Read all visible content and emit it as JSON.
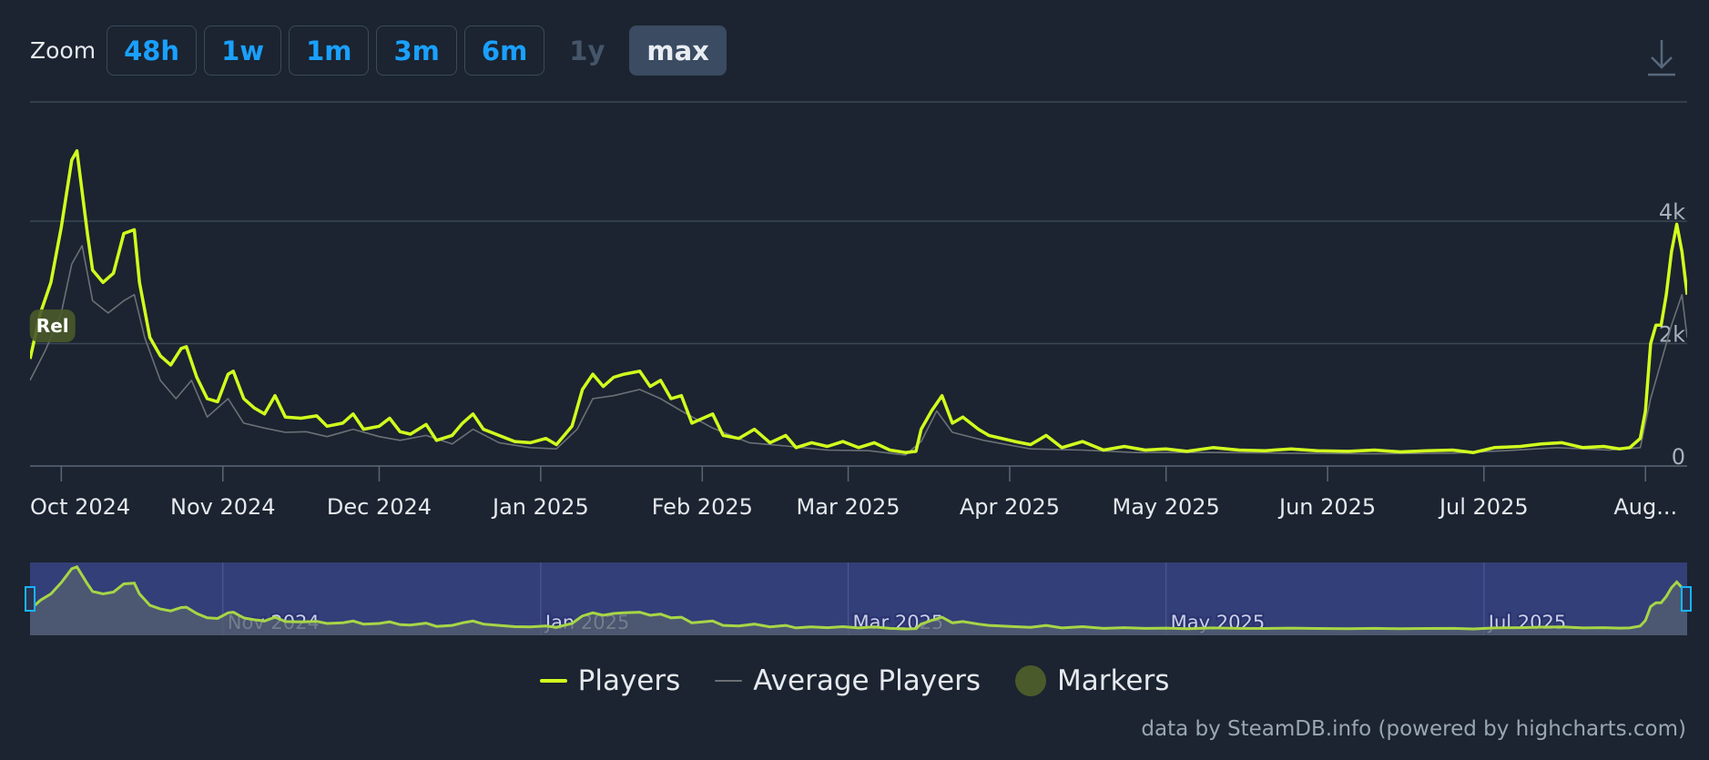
{
  "toolbar": {
    "zoom_label": "Zoom",
    "buttons": [
      "48h",
      "1w",
      "1m",
      "3m",
      "6m",
      "1y",
      "max"
    ],
    "disabled": [
      "1y"
    ],
    "active": "max",
    "download_icon": "download-icon"
  },
  "colors": {
    "background": "#1b2430",
    "players": "#d2ff1e",
    "average": "#6b7076",
    "marker": "#4a5a2a",
    "navigator_bg": "#333f78",
    "accent_button_text": "#1aa0ff"
  },
  "chart_data": {
    "type": "line",
    "x_axis": {
      "type": "datetime",
      "range": [
        "2024-09-25",
        "2025-08-09"
      ],
      "tick_labels": [
        "Oct 2024",
        "Nov 2024",
        "Dec 2024",
        "Jan 2025",
        "Feb 2025",
        "Mar 2025",
        "Apr 2025",
        "May 2025",
        "Jun 2025",
        "Jul 2025",
        "Aug..."
      ],
      "tick_dates": [
        "2024-10-01",
        "2024-11-01",
        "2024-12-01",
        "2025-01-01",
        "2025-02-01",
        "2025-03-01",
        "2025-04-01",
        "2025-05-01",
        "2025-06-01",
        "2025-07-01",
        "2025-08-01"
      ]
    },
    "y_axis": {
      "range": [
        0,
        4000
      ],
      "tick_labels": [
        "0",
        "2k",
        "4k"
      ],
      "tick_values": [
        0,
        2000,
        4000
      ],
      "side": "right",
      "grid": true
    },
    "series": [
      {
        "name": "Players",
        "points": [
          [
            "2024-09-25",
            1750
          ],
          [
            "2024-09-27",
            2500
          ],
          [
            "2024-09-29",
            3000
          ],
          [
            "2024-10-01",
            3900
          ],
          [
            "2024-10-03",
            5000
          ],
          [
            "2024-10-04",
            5150
          ],
          [
            "2024-10-06",
            3800
          ],
          [
            "2024-10-07",
            3200
          ],
          [
            "2024-10-09",
            3000
          ],
          [
            "2024-10-11",
            3150
          ],
          [
            "2024-10-13",
            3800
          ],
          [
            "2024-10-15",
            3860
          ],
          [
            "2024-10-16",
            3000
          ],
          [
            "2024-10-18",
            2100
          ],
          [
            "2024-10-20",
            1800
          ],
          [
            "2024-10-22",
            1650
          ],
          [
            "2024-10-24",
            1920
          ],
          [
            "2024-10-25",
            1950
          ],
          [
            "2024-10-27",
            1450
          ],
          [
            "2024-10-29",
            1100
          ],
          [
            "2024-10-31",
            1050
          ],
          [
            "2024-11-02",
            1500
          ],
          [
            "2024-11-03",
            1550
          ],
          [
            "2024-11-05",
            1100
          ],
          [
            "2024-11-07",
            950
          ],
          [
            "2024-11-09",
            850
          ],
          [
            "2024-11-11",
            1150
          ],
          [
            "2024-11-13",
            800
          ],
          [
            "2024-11-16",
            780
          ],
          [
            "2024-11-19",
            820
          ],
          [
            "2024-11-21",
            650
          ],
          [
            "2024-11-24",
            700
          ],
          [
            "2024-11-26",
            850
          ],
          [
            "2024-11-28",
            600
          ],
          [
            "2024-12-01",
            650
          ],
          [
            "2024-12-03",
            780
          ],
          [
            "2024-12-05",
            560
          ],
          [
            "2024-12-07",
            520
          ],
          [
            "2024-12-10",
            680
          ],
          [
            "2024-12-12",
            420
          ],
          [
            "2024-12-15",
            500
          ],
          [
            "2024-12-17",
            700
          ],
          [
            "2024-12-19",
            850
          ],
          [
            "2024-12-21",
            600
          ],
          [
            "2024-12-24",
            500
          ],
          [
            "2024-12-27",
            400
          ],
          [
            "2024-12-30",
            380
          ],
          [
            "2025-01-02",
            450
          ],
          [
            "2025-01-04",
            350
          ],
          [
            "2025-01-07",
            650
          ],
          [
            "2025-01-09",
            1250
          ],
          [
            "2025-01-11",
            1500
          ],
          [
            "2025-01-13",
            1300
          ],
          [
            "2025-01-15",
            1450
          ],
          [
            "2025-01-17",
            1500
          ],
          [
            "2025-01-20",
            1550
          ],
          [
            "2025-01-22",
            1300
          ],
          [
            "2025-01-24",
            1400
          ],
          [
            "2025-01-26",
            1100
          ],
          [
            "2025-01-28",
            1150
          ],
          [
            "2025-01-30",
            700
          ],
          [
            "2025-02-03",
            850
          ],
          [
            "2025-02-05",
            500
          ],
          [
            "2025-02-08",
            450
          ],
          [
            "2025-02-11",
            600
          ],
          [
            "2025-02-14",
            380
          ],
          [
            "2025-02-17",
            500
          ],
          [
            "2025-02-19",
            300
          ],
          [
            "2025-02-22",
            380
          ],
          [
            "2025-02-25",
            320
          ],
          [
            "2025-02-28",
            400
          ],
          [
            "2025-03-03",
            300
          ],
          [
            "2025-03-06",
            380
          ],
          [
            "2025-03-09",
            260
          ],
          [
            "2025-03-12",
            220
          ],
          [
            "2025-03-14",
            240
          ],
          [
            "2025-03-15",
            600
          ],
          [
            "2025-03-17",
            900
          ],
          [
            "2025-03-19",
            1150
          ],
          [
            "2025-03-21",
            700
          ],
          [
            "2025-03-23",
            800
          ],
          [
            "2025-03-26",
            600
          ],
          [
            "2025-03-28",
            500
          ],
          [
            "2025-04-02",
            400
          ],
          [
            "2025-04-05",
            350
          ],
          [
            "2025-04-08",
            500
          ],
          [
            "2025-04-11",
            300
          ],
          [
            "2025-04-15",
            400
          ],
          [
            "2025-04-19",
            260
          ],
          [
            "2025-04-23",
            320
          ],
          [
            "2025-04-27",
            260
          ],
          [
            "2025-05-01",
            280
          ],
          [
            "2025-05-05",
            240
          ],
          [
            "2025-05-10",
            300
          ],
          [
            "2025-05-15",
            260
          ],
          [
            "2025-05-20",
            250
          ],
          [
            "2025-05-25",
            280
          ],
          [
            "2025-05-30",
            250
          ],
          [
            "2025-06-05",
            240
          ],
          [
            "2025-06-10",
            260
          ],
          [
            "2025-06-15",
            230
          ],
          [
            "2025-06-20",
            250
          ],
          [
            "2025-06-25",
            260
          ],
          [
            "2025-06-29",
            220
          ],
          [
            "2025-07-03",
            300
          ],
          [
            "2025-07-08",
            320
          ],
          [
            "2025-07-12",
            360
          ],
          [
            "2025-07-16",
            380
          ],
          [
            "2025-07-20",
            300
          ],
          [
            "2025-07-24",
            320
          ],
          [
            "2025-07-27",
            280
          ],
          [
            "2025-07-29",
            300
          ],
          [
            "2025-07-31",
            450
          ],
          [
            "2025-08-01",
            900
          ],
          [
            "2025-08-02",
            2000
          ],
          [
            "2025-08-03",
            2300
          ],
          [
            "2025-08-04",
            2300
          ],
          [
            "2025-08-05",
            2800
          ],
          [
            "2025-08-06",
            3500
          ],
          [
            "2025-08-07",
            3950
          ],
          [
            "2025-08-08",
            3500
          ],
          [
            "2025-08-09",
            2800
          ]
        ]
      },
      {
        "name": "Average Players",
        "points": [
          [
            "2024-09-25",
            1400
          ],
          [
            "2024-09-28",
            1900
          ],
          [
            "2024-10-01",
            2500
          ],
          [
            "2024-10-03",
            3300
          ],
          [
            "2024-10-05",
            3600
          ],
          [
            "2024-10-07",
            2700
          ],
          [
            "2024-10-10",
            2500
          ],
          [
            "2024-10-13",
            2700
          ],
          [
            "2024-10-15",
            2800
          ],
          [
            "2024-10-17",
            2100
          ],
          [
            "2024-10-20",
            1400
          ],
          [
            "2024-10-23",
            1100
          ],
          [
            "2024-10-26",
            1400
          ],
          [
            "2024-10-29",
            800
          ],
          [
            "2024-11-02",
            1100
          ],
          [
            "2024-11-05",
            700
          ],
          [
            "2024-11-09",
            620
          ],
          [
            "2024-11-13",
            550
          ],
          [
            "2024-11-17",
            560
          ],
          [
            "2024-11-21",
            480
          ],
          [
            "2024-11-26",
            600
          ],
          [
            "2024-12-01",
            480
          ],
          [
            "2024-12-05",
            420
          ],
          [
            "2024-12-10",
            500
          ],
          [
            "2024-12-15",
            360
          ],
          [
            "2024-12-19",
            600
          ],
          [
            "2024-12-24",
            380
          ],
          [
            "2024-12-30",
            300
          ],
          [
            "2025-01-04",
            280
          ],
          [
            "2025-01-08",
            600
          ],
          [
            "2025-01-11",
            1100
          ],
          [
            "2025-01-15",
            1150
          ],
          [
            "2025-01-20",
            1250
          ],
          [
            "2025-01-24",
            1100
          ],
          [
            "2025-01-28",
            900
          ],
          [
            "2025-02-03",
            620
          ],
          [
            "2025-02-10",
            380
          ],
          [
            "2025-02-18",
            320
          ],
          [
            "2025-02-25",
            260
          ],
          [
            "2025-03-05",
            250
          ],
          [
            "2025-03-12",
            180
          ],
          [
            "2025-03-15",
            400
          ],
          [
            "2025-03-18",
            900
          ],
          [
            "2025-03-21",
            550
          ],
          [
            "2025-03-27",
            420
          ],
          [
            "2025-04-05",
            280
          ],
          [
            "2025-04-15",
            260
          ],
          [
            "2025-04-25",
            220
          ],
          [
            "2025-05-10",
            220
          ],
          [
            "2025-05-25",
            210
          ],
          [
            "2025-06-10",
            200
          ],
          [
            "2025-06-25",
            210
          ],
          [
            "2025-07-05",
            250
          ],
          [
            "2025-07-15",
            300
          ],
          [
            "2025-07-25",
            260
          ],
          [
            "2025-07-31",
            300
          ],
          [
            "2025-08-02",
            1100
          ],
          [
            "2025-08-04",
            1700
          ],
          [
            "2025-08-06",
            2300
          ],
          [
            "2025-08-08",
            2800
          ],
          [
            "2025-08-09",
            2100
          ]
        ]
      }
    ],
    "markers": [
      {
        "date": "2024-09-26",
        "label": "Rel"
      }
    ],
    "navigator": {
      "tick_labels": [
        "Nov 2024",
        "Jan 2025",
        "Mar 2025",
        "May 2025",
        "Jul 2025"
      ],
      "tick_dates": [
        "2024-11-01",
        "2025-01-01",
        "2025-03-01",
        "2025-05-01",
        "2025-07-01"
      ]
    }
  },
  "legend": {
    "items": [
      {
        "label": "Players",
        "symbol": "line",
        "color": "#d2ff1e"
      },
      {
        "label": "Average Players",
        "symbol": "line",
        "color": "#6b7076"
      },
      {
        "label": "Markers",
        "symbol": "dot",
        "color": "#4a5a2a"
      }
    ]
  },
  "credits": "data by SteamDB.info (powered by highcharts.com)"
}
